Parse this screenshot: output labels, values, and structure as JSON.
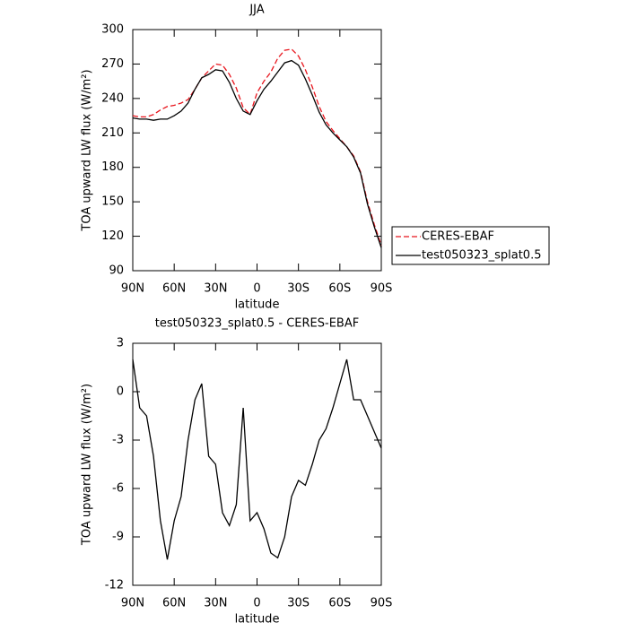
{
  "chart_data": [
    {
      "type": "line",
      "title": "JJA",
      "xlabel": "latitude",
      "ylabel": "TOA upward LW flux (W/m²)",
      "x": [
        90,
        85,
        80,
        75,
        70,
        65,
        60,
        55,
        50,
        45,
        40,
        35,
        30,
        25,
        20,
        15,
        10,
        5,
        0,
        -5,
        -10,
        -15,
        -20,
        -25,
        -30,
        -35,
        -40,
        -45,
        -50,
        -55,
        -60,
        -65,
        -70,
        -75,
        -80,
        -85,
        -90
      ],
      "series": [
        {
          "name": "CERES-EBAF",
          "color": "#e8141c",
          "style": "dashed",
          "values": [
            225,
            224,
            224,
            226,
            230,
            233,
            234,
            236,
            239,
            248,
            258,
            264,
            270,
            269,
            261,
            249,
            232,
            226,
            245,
            255,
            263,
            275,
            282,
            283,
            277,
            265,
            250,
            233,
            220,
            212,
            205,
            198,
            190,
            176,
            150,
            130,
            112
          ]
        },
        {
          "name": "test050323_splat0.5",
          "color": "#000000",
          "style": "solid",
          "values": [
            223,
            222,
            222,
            221,
            222,
            222,
            225,
            229,
            236,
            248,
            258,
            261,
            265,
            264,
            254,
            240,
            229,
            226,
            238,
            248,
            255,
            263,
            271,
            273,
            269,
            257,
            243,
            228,
            217,
            210,
            204,
            198,
            189,
            175,
            148,
            128,
            110
          ]
        }
      ],
      "xlim": [
        90,
        -90
      ],
      "xticks": [
        {
          "value": 90,
          "label": "90N"
        },
        {
          "value": 60,
          "label": "60N"
        },
        {
          "value": 30,
          "label": "30N"
        },
        0,
        {
          "value": -30,
          "label": "30S"
        },
        {
          "value": -60,
          "label": "60S"
        },
        {
          "value": -90,
          "label": "90S"
        }
      ],
      "ylim": [
        90,
        300
      ],
      "yticks": [
        90,
        120,
        150,
        180,
        210,
        240,
        270,
        300
      ],
      "legend": "right"
    },
    {
      "type": "line",
      "title": "test050323_splat0.5 - CERES-EBAF",
      "xlabel": "latitude",
      "ylabel": "TOA upward LW flux (W/m²)",
      "x": [
        90,
        85,
        80,
        75,
        70,
        65,
        60,
        55,
        50,
        45,
        40,
        35,
        30,
        25,
        20,
        15,
        10,
        5,
        0,
        -5,
        -10,
        -15,
        -20,
        -25,
        -30,
        -35,
        -40,
        -45,
        -50,
        -55,
        -60,
        -65,
        -70,
        -75,
        -80,
        -85,
        -90
      ],
      "series": [
        {
          "color": "#000000",
          "style": "solid",
          "values": [
            2,
            -1,
            -1.5,
            -4,
            -8,
            -10.4,
            -8,
            -6.5,
            -3,
            -0.5,
            0.5,
            -4,
            -4.5,
            -7.5,
            -8.3,
            -7,
            -1,
            -8,
            -7.5,
            -8.5,
            -10,
            -10.3,
            -9,
            -6.5,
            -5.5,
            -5.8,
            -4.5,
            -3,
            -2.3,
            -1,
            0.5,
            2,
            -0.5,
            -0.5,
            -1.5,
            -2.5,
            -3.5
          ]
        }
      ],
      "xlim": [
        90,
        -90
      ],
      "xticks": [
        {
          "value": 90,
          "label": "90N"
        },
        {
          "value": 60,
          "label": "60N"
        },
        {
          "value": 30,
          "label": "30N"
        },
        0,
        {
          "value": -30,
          "label": "30S"
        },
        {
          "value": -60,
          "label": "60S"
        },
        {
          "value": -90,
          "label": "90S"
        }
      ],
      "ylim": [
        -12,
        3
      ],
      "yticks": [
        -12,
        -9,
        -6,
        -3,
        0,
        3
      ]
    }
  ]
}
